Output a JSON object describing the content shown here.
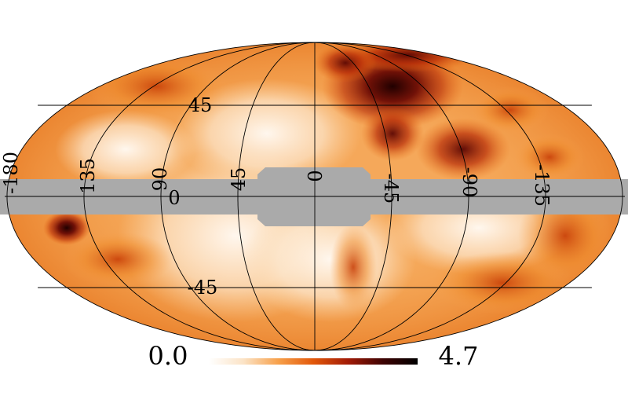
{
  "projection": "mollweide",
  "colorbar": {
    "min_label": "0.0",
    "max_label": "4.7",
    "colors": [
      "#ffffff",
      "#fbe3c6",
      "#f7a04a",
      "#e2580a",
      "#a21b06",
      "#3e0303",
      "#000000"
    ]
  },
  "mask_color": "#aaaaaa",
  "graticule": {
    "lat_labels": [
      "45",
      "0",
      "-45"
    ],
    "lon_labels": [
      "180",
      "135",
      "90",
      "45",
      "0",
      "-45",
      "-90",
      "-135"
    ]
  },
  "hotspots": [
    {
      "name": "north-east-dark-region",
      "level": 0.95
    },
    {
      "name": "north-east-band",
      "level": 0.8
    },
    {
      "name": "west-south-spot",
      "level": 0.85
    },
    {
      "name": "east-limb-region",
      "level": 0.55
    },
    {
      "name": "south-center-arc",
      "level": 0.5
    }
  ]
}
